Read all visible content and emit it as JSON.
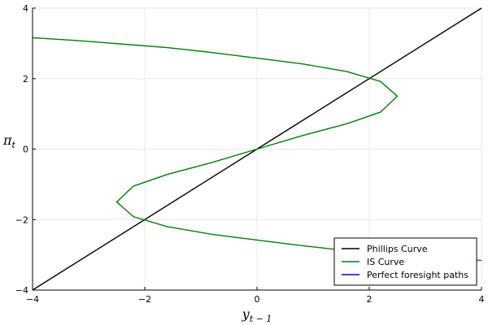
{
  "chart_data": {
    "type": "line",
    "title": "",
    "xlabel": {
      "base": "y",
      "subscript": "t − 1"
    },
    "ylabel": {
      "base": "π",
      "subscript": "t"
    },
    "xlim": [
      -4,
      4
    ],
    "ylim": [
      -4,
      4
    ],
    "xticks": [
      -4,
      -2,
      0,
      2,
      4
    ],
    "yticks": [
      -4,
      -2,
      0,
      2,
      4
    ],
    "grid": true,
    "legend_position": "bottom-right",
    "series": [
      {
        "name": "Phillips Curve",
        "color": "#000000",
        "x": [
          -4,
          4
        ],
        "y": [
          -4,
          4
        ]
      },
      {
        "name": "IS Curve",
        "color": "#008000",
        "x": [
          -4.0,
          -3.2,
          -2.4,
          -1.6,
          -0.8,
          0.0,
          0.8,
          1.6,
          2.2,
          2.5,
          2.2,
          1.6,
          0.8,
          0.0,
          -0.8,
          -1.6,
          -2.2,
          -2.5,
          -2.2,
          -1.6,
          -0.8,
          0.0,
          0.8,
          1.6,
          2.4,
          3.2,
          4.0
        ],
        "y": [
          3.16,
          3.08,
          2.98,
          2.88,
          2.74,
          2.58,
          2.42,
          2.2,
          1.92,
          1.5,
          1.05,
          0.72,
          0.38,
          0.0,
          -0.38,
          -0.72,
          -1.05,
          -1.5,
          -1.92,
          -2.2,
          -2.42,
          -2.58,
          -2.74,
          -2.88,
          -2.98,
          -3.08,
          -3.16
        ]
      },
      {
        "name": "Perfect foresight paths",
        "color": "#0000ff",
        "x": [],
        "y": []
      }
    ]
  }
}
